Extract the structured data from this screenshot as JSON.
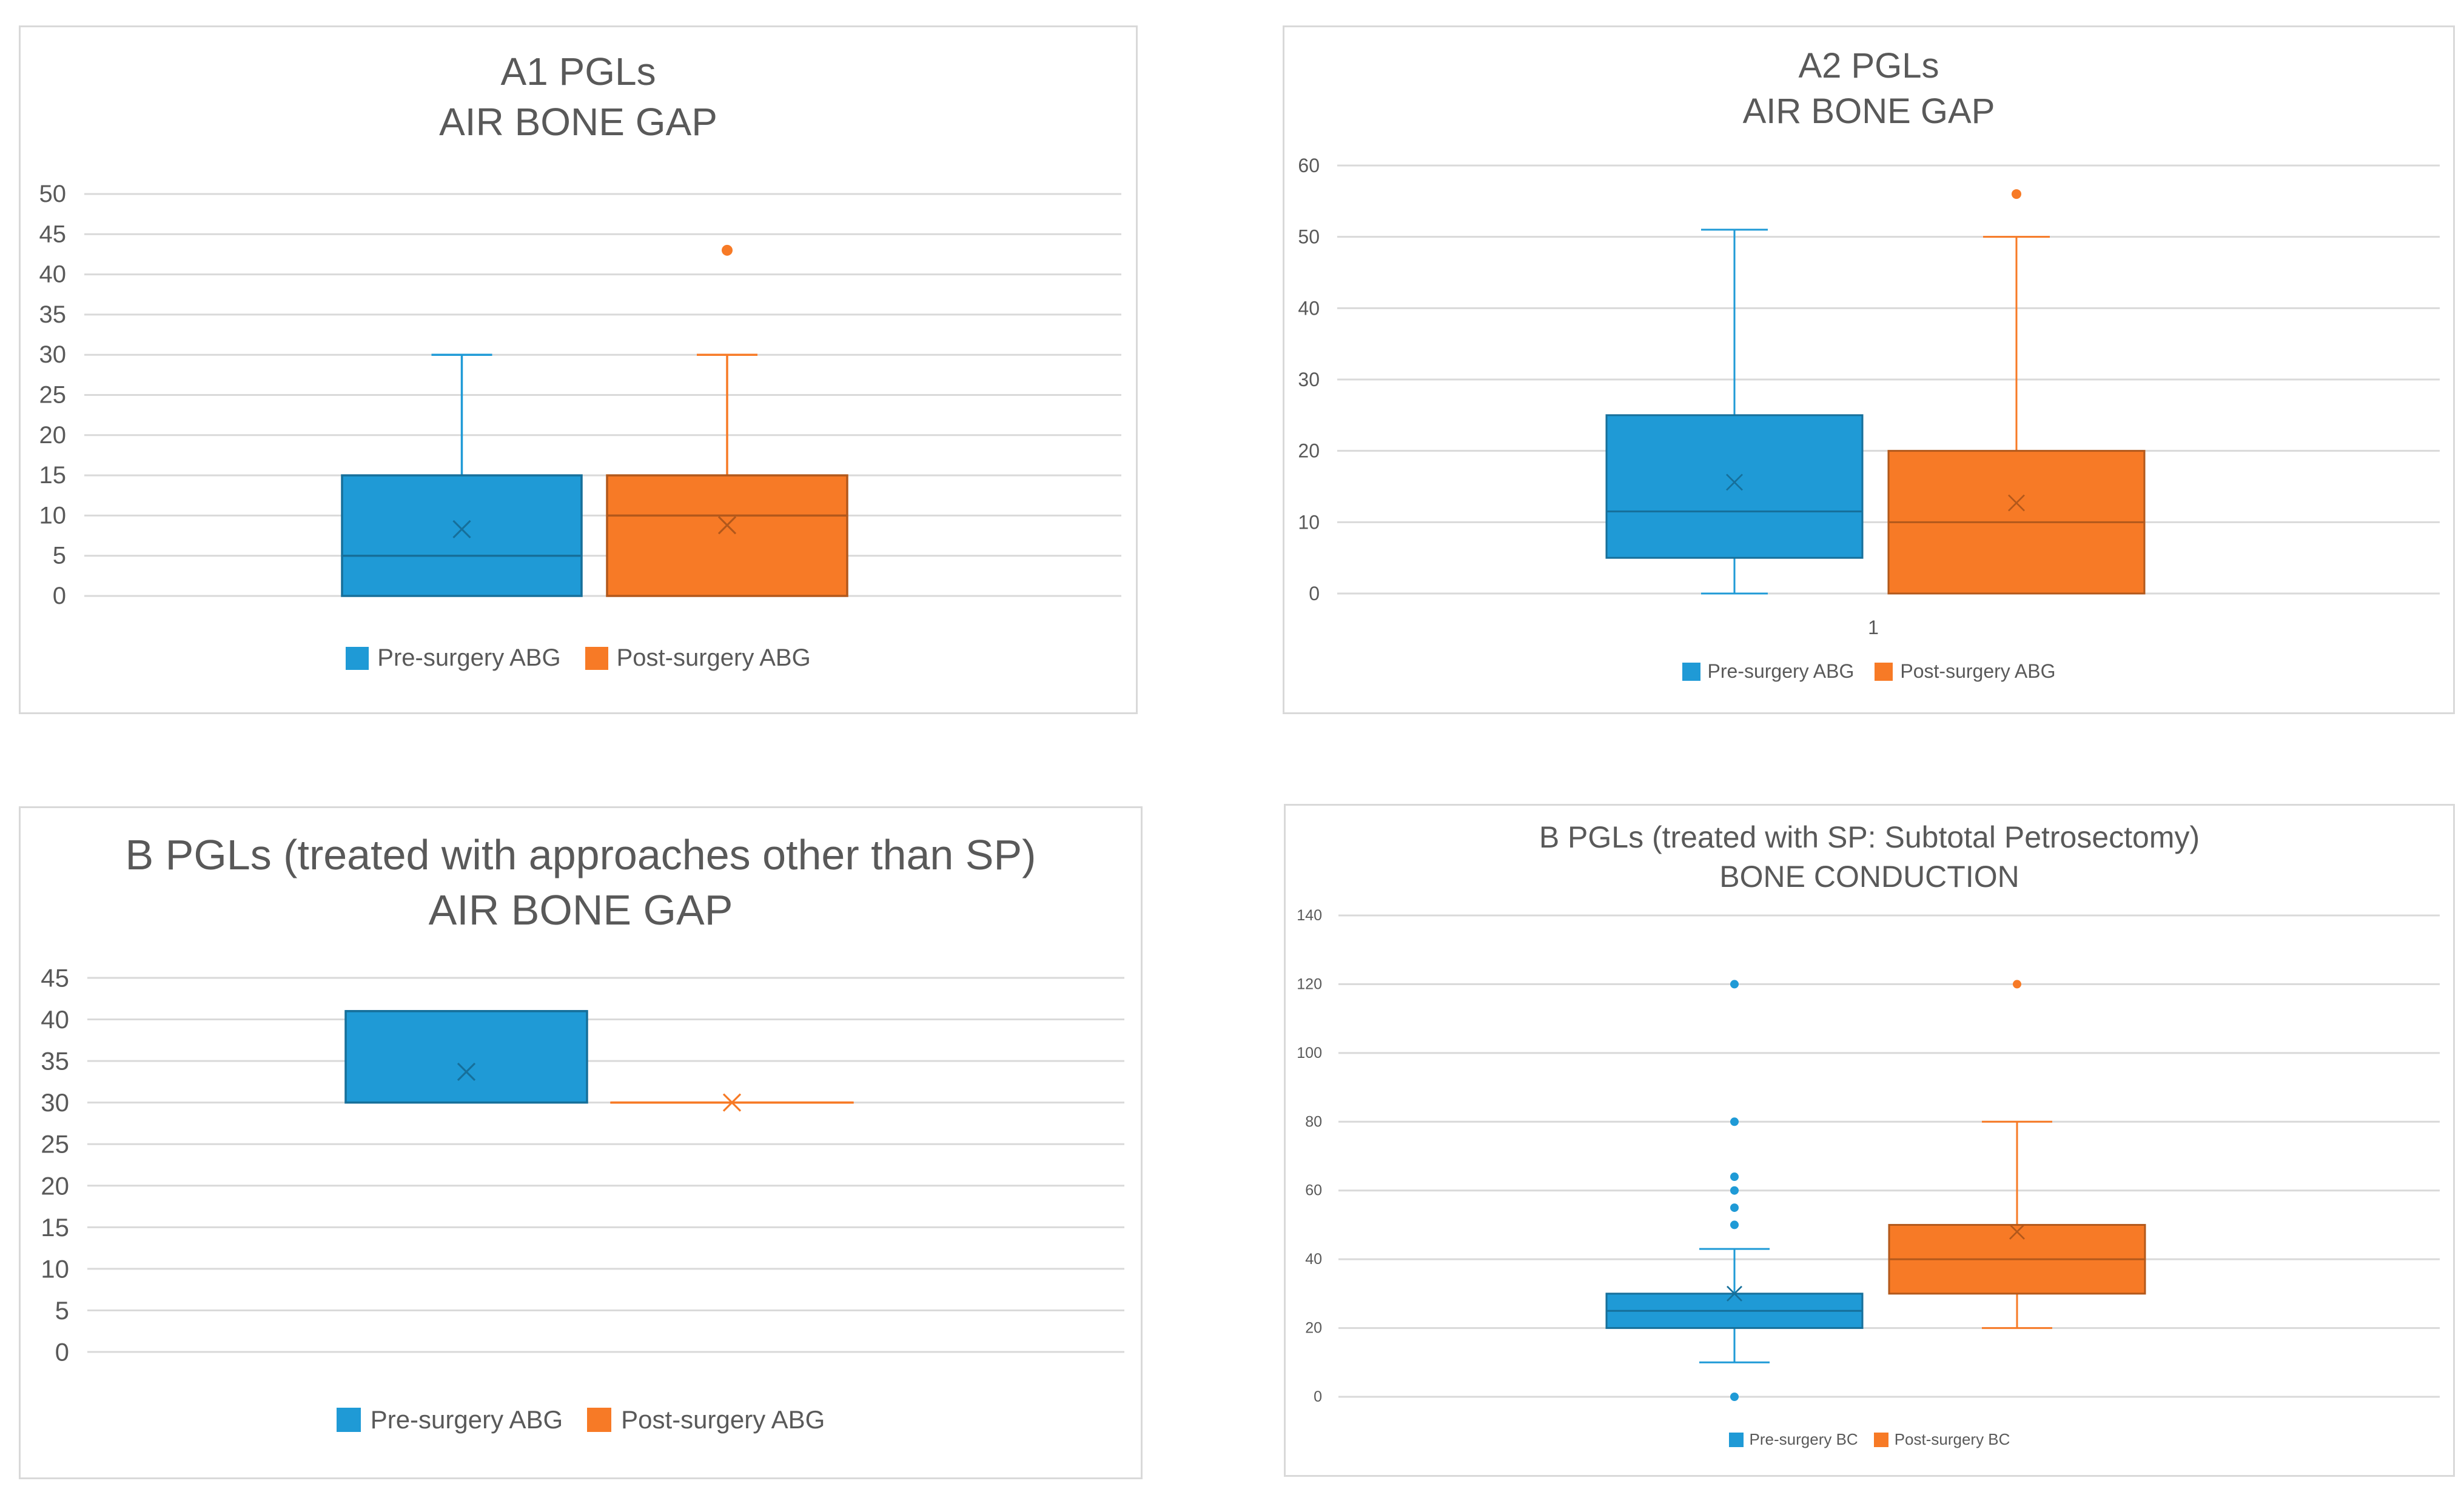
{
  "chart_data": [
    {
      "id": "a1",
      "type": "boxplot",
      "title_lines": [
        "A1 PGLs",
        "AIR BONE GAP"
      ],
      "ylim": [
        0,
        50
      ],
      "y_ticks": [
        "0",
        "5",
        "10",
        "15",
        "20",
        "25",
        "30",
        "35",
        "40",
        "45",
        "50"
      ],
      "grid": true,
      "x_category_label": "",
      "legend_position": "bottom",
      "series": [
        {
          "name": "Pre-surgery ABG",
          "color": "#1f9ad6",
          "min": 0,
          "q1": 0,
          "median": 5,
          "q3": 15,
          "max": 30,
          "mean": 8.3,
          "outliers": []
        },
        {
          "name": "Post-surgery ABG",
          "color": "#f77a26",
          "min": 0,
          "q1": 0,
          "median": 10,
          "q3": 15,
          "max": 30,
          "mean": 8.8,
          "outliers": [
            43
          ]
        }
      ]
    },
    {
      "id": "a2",
      "type": "boxplot",
      "title_lines": [
        "A2 PGLs",
        "AIR BONE GAP"
      ],
      "ylim": [
        0,
        60
      ],
      "y_ticks": [
        "0",
        "10",
        "20",
        "30",
        "40",
        "50",
        "60"
      ],
      "grid": true,
      "x_category_label": "1",
      "legend_position": "bottom",
      "series": [
        {
          "name": "Pre-surgery ABG",
          "color": "#1f9ad6",
          "min": 0,
          "q1": 5,
          "median": 11.5,
          "q3": 25,
          "max": 51,
          "mean": 15.6,
          "outliers": []
        },
        {
          "name": "Post-surgery ABG",
          "color": "#f77a26",
          "min": 0,
          "q1": 0,
          "median": 10,
          "q3": 20,
          "max": 50,
          "mean": 12.7,
          "outliers": [
            56
          ]
        }
      ]
    },
    {
      "id": "b-other",
      "type": "boxplot",
      "title_lines": [
        "B PGLs (treated with approaches other than SP)",
        "AIR BONE GAP"
      ],
      "ylim": [
        0,
        45
      ],
      "y_ticks": [
        "0",
        "5",
        "10",
        "15",
        "20",
        "25",
        "30",
        "35",
        "40",
        "45"
      ],
      "grid": true,
      "x_category_label": "",
      "legend_position": "bottom",
      "series": [
        {
          "name": "Pre-surgery ABG",
          "color": "#1f9ad6",
          "min": 30,
          "q1": 30,
          "median": 41,
          "q3": 41,
          "max": 41,
          "mean": 33.7,
          "outliers": []
        },
        {
          "name": "Post-surgery ABG",
          "color": "#f77a26",
          "min": 30,
          "q1": 30,
          "median": 30,
          "q3": 30,
          "max": 30,
          "mean": 30,
          "outliers": []
        }
      ]
    },
    {
      "id": "b-sp",
      "type": "boxplot",
      "title_lines": [
        "B PGLs (treated with SP: Subtotal Petrosectomy)",
        "BONE CONDUCTION"
      ],
      "ylim": [
        0,
        140
      ],
      "y_ticks": [
        "0",
        "20",
        "40",
        "60",
        "80",
        "100",
        "120",
        "140"
      ],
      "grid": true,
      "x_category_label": "",
      "legend_position": "bottom",
      "series": [
        {
          "name": "Pre-surgery BC",
          "color": "#1f9ad6",
          "min": 10,
          "q1": 20,
          "median": 25,
          "q3": 30,
          "max": 43,
          "mean": 30,
          "outliers": [
            0,
            50,
            55,
            60,
            64,
            80,
            120
          ]
        },
        {
          "name": "Post-surgery BC",
          "color": "#f77a26",
          "min": 20,
          "q1": 30,
          "median": 40,
          "q3": 50,
          "max": 80,
          "mean": 48,
          "outliers": [
            120
          ]
        }
      ]
    }
  ]
}
